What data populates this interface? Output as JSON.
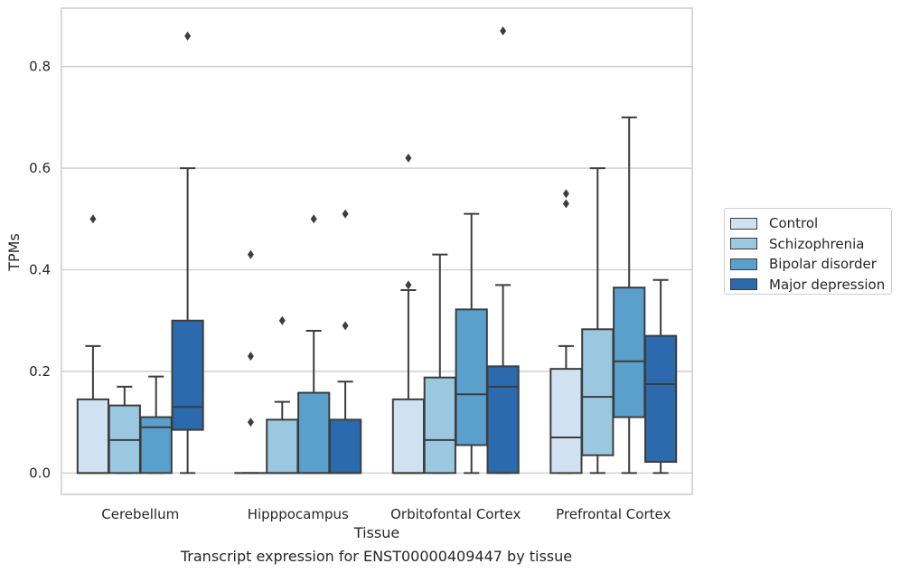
{
  "chart_data": {
    "type": "box",
    "title": "",
    "xlabel": "Tissue",
    "ylabel": "TPMs",
    "ylim": [
      -0.042,
      0.915
    ],
    "yticks": [
      0.0,
      0.2,
      0.4,
      0.6,
      0.8
    ],
    "ytick_labels": [
      "0.0",
      "0.2",
      "0.4",
      "0.6",
      "0.8"
    ],
    "grid": "horizontal",
    "legend_position": "right",
    "categories": [
      "Cerebellum",
      "Hipppocampus",
      "Orbitofontal Cortex",
      "Prefrontal Cortex"
    ],
    "series": [
      {
        "name": "Control",
        "color": "#d0e2f2",
        "boxes": [
          {
            "whislo": 0.0,
            "q1": 0.0,
            "med": 0.0,
            "q3": 0.145,
            "whishi": 0.25,
            "fliers": [
              0.5
            ]
          },
          {
            "whislo": 0.0,
            "q1": 0.0,
            "med": 0.0,
            "q3": 0.0,
            "whishi": 0.0,
            "fliers": [
              0.43,
              0.23,
              0.1
            ]
          },
          {
            "whislo": 0.0,
            "q1": 0.0,
            "med": 0.0,
            "q3": 0.145,
            "whishi": 0.36,
            "fliers": [
              0.62,
              0.37
            ]
          },
          {
            "whislo": 0.0,
            "q1": 0.0,
            "med": 0.07,
            "q3": 0.205,
            "whishi": 0.25,
            "fliers": [
              0.55,
              0.53
            ]
          }
        ]
      },
      {
        "name": "Schizophrenia",
        "color": "#9ac8e0",
        "boxes": [
          {
            "whislo": 0.0,
            "q1": 0.0,
            "med": 0.065,
            "q3": 0.133,
            "whishi": 0.17,
            "fliers": []
          },
          {
            "whislo": 0.0,
            "q1": 0.0,
            "med": 0.0,
            "q3": 0.105,
            "whishi": 0.14,
            "fliers": [
              0.3
            ]
          },
          {
            "whislo": 0.0,
            "q1": 0.0,
            "med": 0.065,
            "q3": 0.188,
            "whishi": 0.43,
            "fliers": []
          },
          {
            "whislo": 0.0,
            "q1": 0.035,
            "med": 0.15,
            "q3": 0.283,
            "whishi": 0.6,
            "fliers": []
          }
        ]
      },
      {
        "name": "Bipolar disorder",
        "color": "#5aa0cd",
        "boxes": [
          {
            "whislo": 0.0,
            "q1": 0.0,
            "med": 0.09,
            "q3": 0.11,
            "whishi": 0.19,
            "fliers": []
          },
          {
            "whislo": 0.0,
            "q1": 0.0,
            "med": 0.0,
            "q3": 0.158,
            "whishi": 0.28,
            "fliers": [
              0.5
            ]
          },
          {
            "whislo": 0.0,
            "q1": 0.055,
            "med": 0.155,
            "q3": 0.322,
            "whishi": 0.51,
            "fliers": []
          },
          {
            "whislo": 0.0,
            "q1": 0.11,
            "med": 0.22,
            "q3": 0.365,
            "whishi": 0.7,
            "fliers": []
          }
        ]
      },
      {
        "name": "Major depression",
        "color": "#2a6aad",
        "boxes": [
          {
            "whislo": 0.0,
            "q1": 0.085,
            "med": 0.13,
            "q3": 0.3,
            "whishi": 0.6,
            "fliers": [
              0.86
            ]
          },
          {
            "whislo": 0.0,
            "q1": 0.0,
            "med": 0.0,
            "q3": 0.105,
            "whishi": 0.18,
            "fliers": [
              0.51,
              0.29
            ]
          },
          {
            "whislo": 0.0,
            "q1": 0.0,
            "med": 0.17,
            "q3": 0.21,
            "whishi": 0.37,
            "fliers": [
              0.87
            ]
          },
          {
            "whislo": 0.0,
            "q1": 0.022,
            "med": 0.175,
            "q3": 0.27,
            "whishi": 0.38,
            "fliers": []
          }
        ]
      }
    ],
    "caption": "Transcript expression for ENST00000409447 by tissue"
  }
}
